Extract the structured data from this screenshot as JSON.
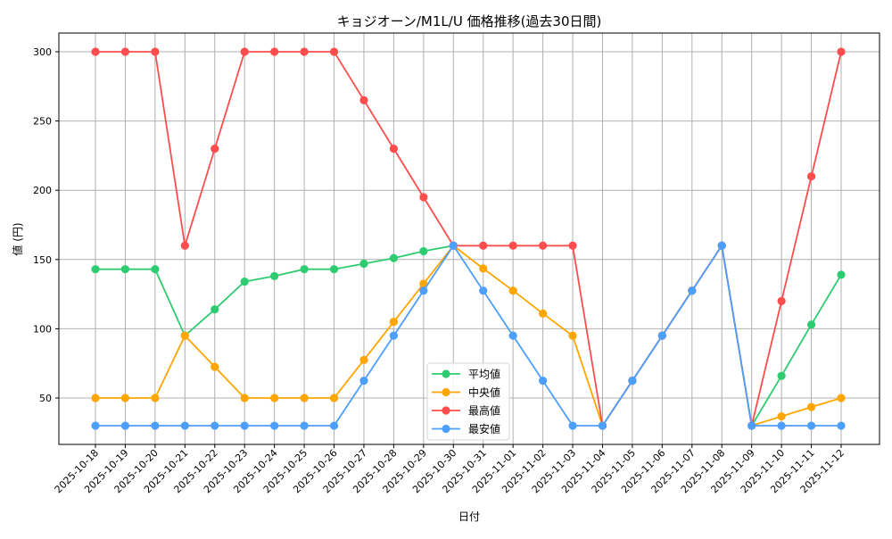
{
  "chart_data": {
    "type": "line",
    "title": "キョジオーン/M1L/U 価格推移(過去30日間)",
    "xlabel": "日付",
    "ylabel": "値 (円)",
    "ylim": [
      18,
      313
    ],
    "yticks": [
      50,
      100,
      150,
      200,
      250,
      300
    ],
    "grid": true,
    "legend_position": "lower center",
    "categories": [
      "2025-10-18",
      "2025-10-19",
      "2025-10-20",
      "2025-10-21",
      "2025-10-22",
      "2025-10-23",
      "2025-10-24",
      "2025-10-25",
      "2025-10-26",
      "2025-10-27",
      "2025-10-28",
      "2025-10-29",
      "2025-10-30",
      "2025-10-31",
      "2025-11-01",
      "2025-11-02",
      "2025-11-03",
      "2025-11-04",
      "2025-11-05",
      "2025-11-06",
      "2025-11-07",
      "2025-11-08",
      "2025-11-09",
      "2025-11-10",
      "2025-11-11",
      "2025-11-12"
    ],
    "series": [
      {
        "name": "平均値",
        "color": "#2ecc71",
        "values": [
          143,
          143,
          143,
          95,
          114,
          134,
          138,
          143,
          143,
          147,
          151,
          156,
          160,
          null,
          null,
          null,
          null,
          30,
          62.5,
          95,
          127.5,
          160,
          30,
          66,
          103,
          139
        ]
      },
      {
        "name": "中央値",
        "color": "#ffa500",
        "values": [
          50,
          50,
          50,
          95,
          72.5,
          50,
          50,
          50,
          50,
          77.5,
          105,
          132.5,
          160,
          143.5,
          127.5,
          111,
          95,
          30,
          62.5,
          95,
          127.5,
          160,
          30,
          36.7,
          43.5,
          50
        ]
      },
      {
        "name": "最高値",
        "color": "#ff4d4d",
        "values": [
          300,
          300,
          300,
          160,
          230,
          300,
          300,
          300,
          300,
          265,
          230,
          195,
          160,
          160,
          160,
          160,
          160,
          30,
          62.5,
          95,
          127.5,
          160,
          30,
          120,
          210,
          300
        ]
      },
      {
        "name": "最安値",
        "color": "#4d9fff",
        "values": [
          30,
          30,
          30,
          30,
          30,
          30,
          30,
          30,
          30,
          62.5,
          95,
          127.5,
          160,
          127.5,
          95,
          62.5,
          30,
          30,
          62.5,
          95,
          127.5,
          160,
          30,
          30,
          30,
          30
        ]
      }
    ],
    "notes": "平均値 for 2025-10-31..2025-11-03 is hidden behind 中央値 (same values: 143.5, 127.5, 111, 95)."
  },
  "legend": {
    "items": [
      {
        "label": "平均値",
        "color": "#2ecc71"
      },
      {
        "label": "中央値",
        "color": "#ffa500"
      },
      {
        "label": "最高値",
        "color": "#ff4d4d"
      },
      {
        "label": "最安値",
        "color": "#4d9fff"
      }
    ]
  }
}
